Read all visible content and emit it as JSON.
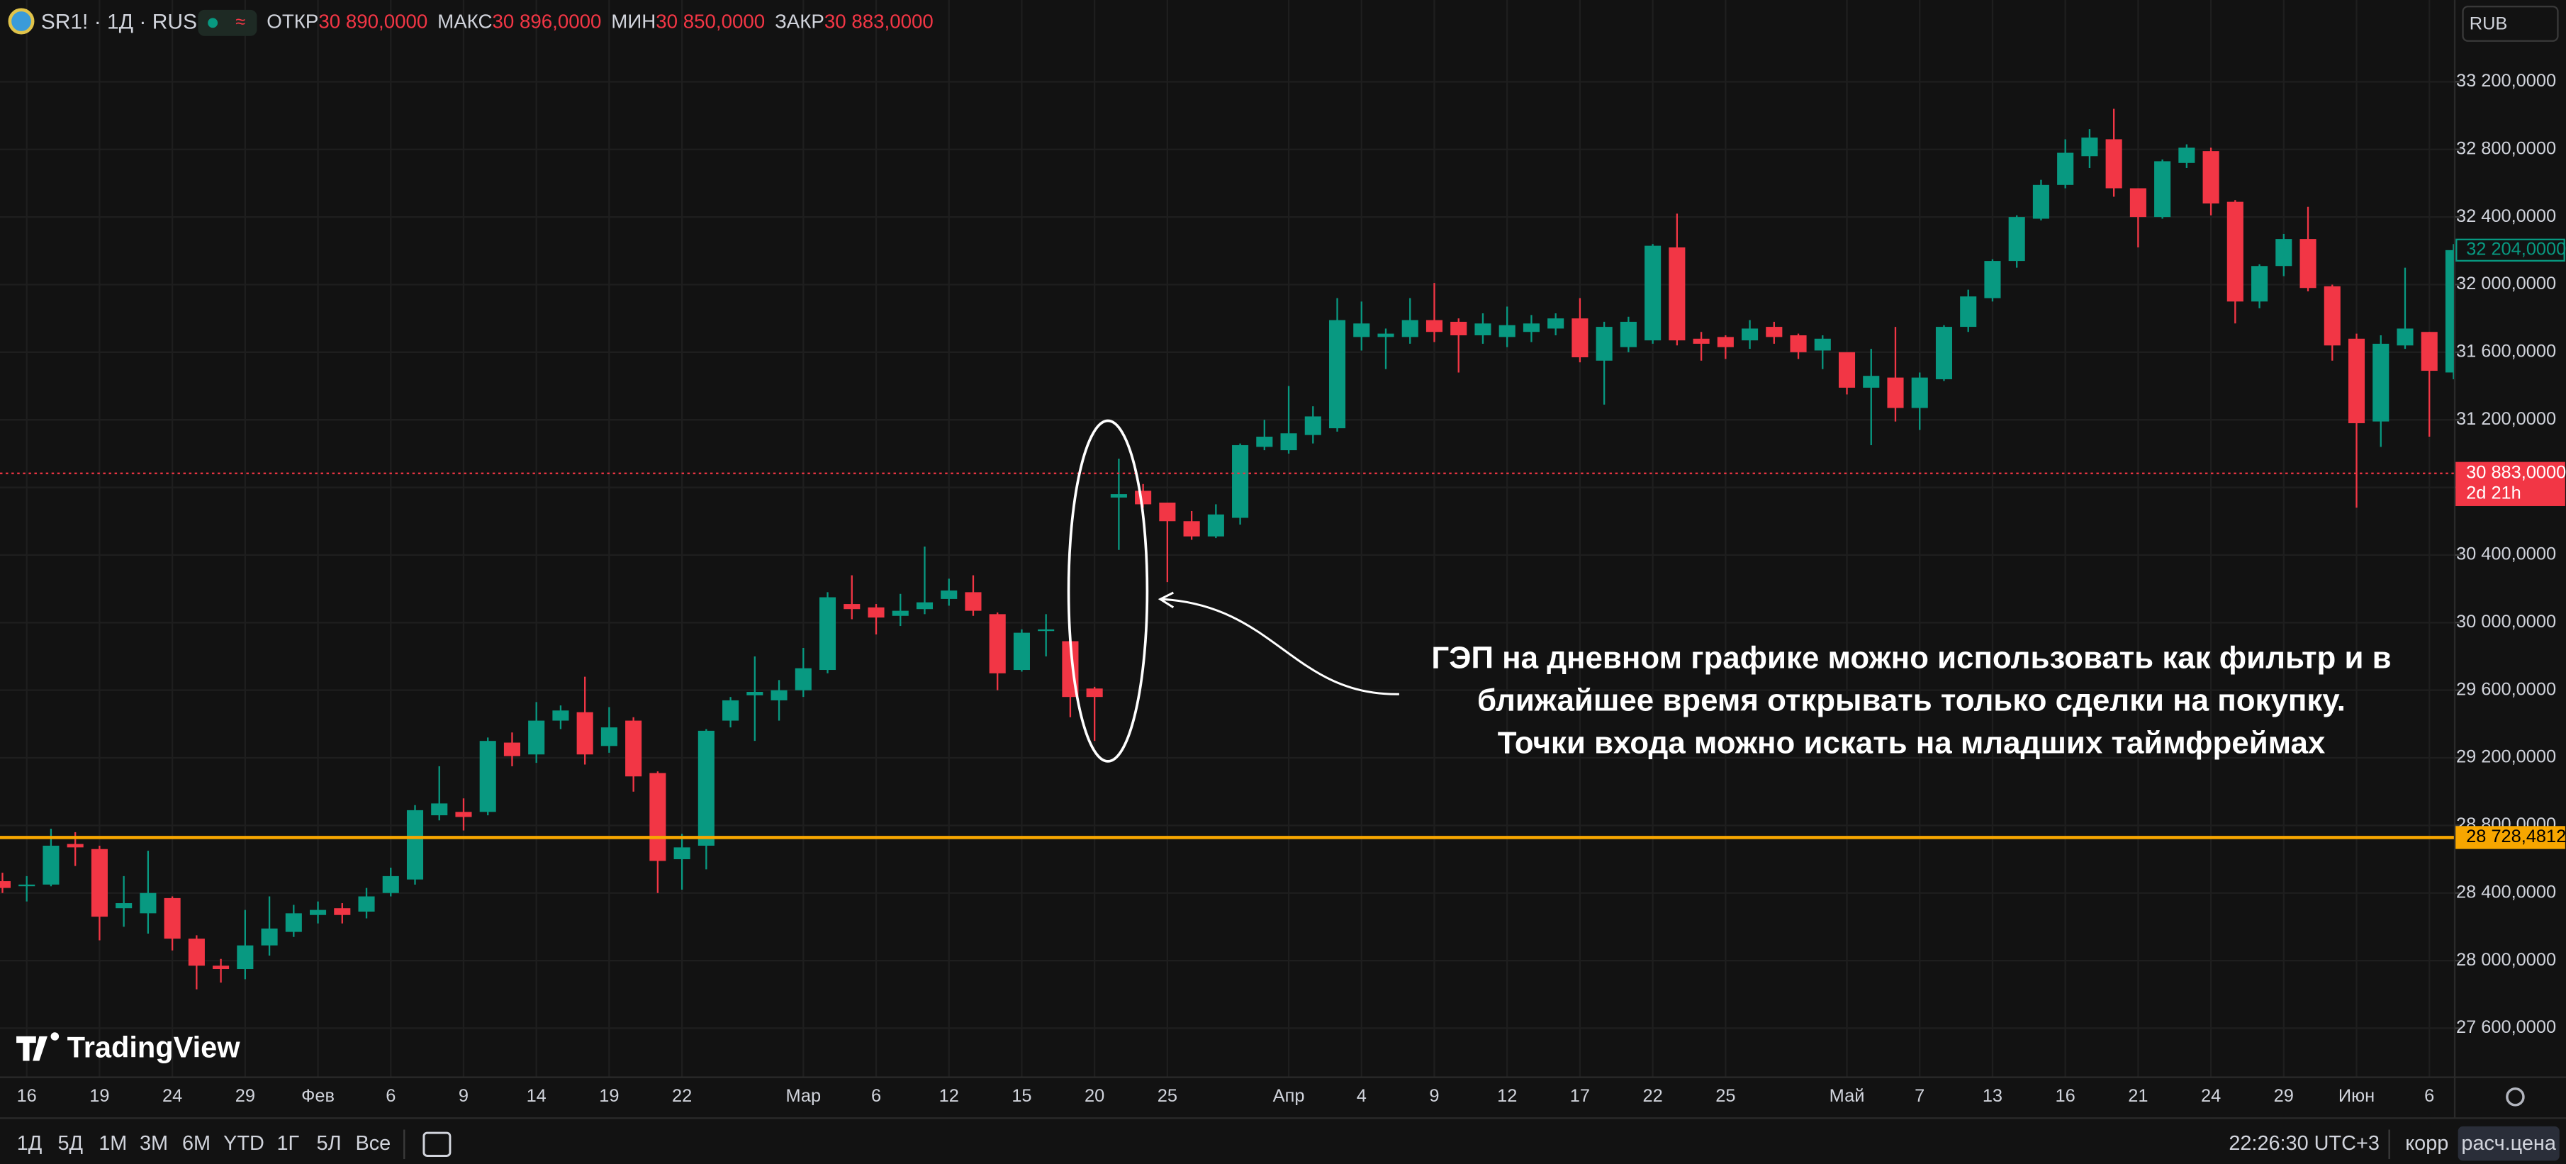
{
  "header": {
    "symbol": "SR1! · 1Д · RUS",
    "open_label": "ОТКР",
    "open": "30 890,0000",
    "high_label": "МАКС",
    "high": "30 896,0000",
    "low_label": "МИН",
    "low": "30 850,0000",
    "close_label": "ЗАКР",
    "close": "30 883,0000",
    "currency": "RUB"
  },
  "chart_data": {
    "type": "candlestick",
    "categories": [
      null,
      "16",
      null,
      null,
      "19",
      null,
      null,
      "24",
      null,
      null,
      "29",
      null,
      null,
      "Фев",
      null,
      null,
      "6",
      null,
      null,
      "9",
      null,
      null,
      "14",
      null,
      null,
      "19",
      null,
      null,
      "22",
      null,
      null,
      null,
      null,
      "Мар",
      null,
      null,
      "6",
      null,
      null,
      "12",
      null,
      null,
      "15",
      null,
      null,
      "20",
      null,
      null,
      "25",
      null,
      null,
      null,
      null,
      "Апр",
      null,
      null,
      "4",
      null,
      null,
      "9",
      null,
      null,
      "12",
      null,
      null,
      "17",
      null,
      null,
      "22",
      null,
      null,
      "25",
      null,
      null,
      null,
      null,
      "Май",
      null,
      null,
      "7",
      null,
      null,
      "13",
      null,
      null,
      "16",
      null,
      null,
      "21",
      null,
      null,
      "24",
      null,
      null,
      "29",
      null,
      null,
      "Июн",
      null,
      null,
      "6",
      null
    ],
    "open": [
      28470,
      28440,
      28450,
      28690,
      28660,
      28310,
      28280,
      28370,
      28130,
      27970,
      27950,
      28090,
      28170,
      28270,
      28310,
      28290,
      28400,
      28480,
      28860,
      28880,
      28880,
      29290,
      29220,
      29420,
      29470,
      29270,
      29420,
      29110,
      28600,
      28680,
      29420,
      29570,
      29540,
      29600,
      29720,
      30110,
      30090,
      30040,
      30080,
      30140,
      30180,
      30050,
      29720,
      29950,
      29890,
      29610,
      30740,
      30780,
      30710,
      30600,
      30510,
      30620,
      31040,
      31020,
      31110,
      31150,
      31690,
      31690,
      31690,
      31790,
      31780,
      31700,
      31690,
      31720,
      31740,
      31800,
      31550,
      31630,
      31670,
      32220,
      31680,
      31690,
      31670,
      31750,
      31700,
      31610,
      31600,
      31390,
      31450,
      31270,
      31440,
      31750,
      31920,
      32140,
      32390,
      32590,
      32760,
      32860,
      32570,
      32400,
      32720,
      32790,
      32490,
      31900,
      32110,
      32270,
      31990,
      31680,
      31190,
      31640,
      31720,
      31480
    ],
    "high": [
      28520,
      28500,
      28780,
      28760,
      28680,
      28500,
      28650,
      28380,
      28150,
      28010,
      28300,
      28380,
      28330,
      28350,
      28340,
      28430,
      28550,
      28920,
      29150,
      28960,
      29320,
      29350,
      29530,
      29510,
      29680,
      29500,
      29440,
      29120,
      28750,
      29370,
      29560,
      29800,
      29660,
      29850,
      30180,
      30280,
      30110,
      30170,
      30450,
      30260,
      30280,
      30060,
      29960,
      30050,
      29890,
      29620,
      30970,
      30820,
      30710,
      30660,
      30700,
      31060,
      31200,
      31400,
      31280,
      31920,
      31900,
      31740,
      31920,
      32010,
      31800,
      31830,
      31870,
      31820,
      31830,
      31920,
      31780,
      31810,
      32240,
      32420,
      31720,
      31700,
      31790,
      31780,
      31710,
      31700,
      31600,
      31620,
      31750,
      31480,
      31760,
      31970,
      32150,
      32410,
      32620,
      32860,
      32920,
      33040,
      32570,
      32740,
      32830,
      32810,
      32500,
      32120,
      32300,
      32460,
      32000,
      31710,
      31700,
      32100,
      31720,
      32240
    ],
    "low": [
      28400,
      28350,
      28440,
      28560,
      28120,
      28200,
      28160,
      28060,
      27830,
      27870,
      27890,
      28030,
      28140,
      28220,
      28220,
      28250,
      28380,
      28450,
      28830,
      28770,
      28860,
      29150,
      29170,
      29370,
      29160,
      29230,
      29000,
      28400,
      28420,
      28540,
      29380,
      29300,
      29420,
      29560,
      29700,
      30020,
      29930,
      29980,
      30050,
      30100,
      30040,
      29600,
      29710,
      29800,
      29440,
      29300,
      30430,
      30680,
      30240,
      30490,
      30500,
      30580,
      31020,
      31000,
      31060,
      31130,
      31610,
      31500,
      31650,
      31660,
      31480,
      31650,
      31630,
      31660,
      31700,
      31540,
      31290,
      31600,
      31650,
      31640,
      31550,
      31560,
      31620,
      31650,
      31560,
      31500,
      31350,
      31050,
      31190,
      31140,
      31430,
      31720,
      31900,
      32100,
      32380,
      32570,
      32690,
      32520,
      32220,
      32390,
      32690,
      32410,
      31770,
      31860,
      32050,
      31960,
      31550,
      30680,
      31040,
      31620,
      31100,
      31440
    ],
    "close": [
      28430,
      28450,
      28680,
      28670,
      28260,
      28340,
      28400,
      28130,
      27970,
      27950,
      28090,
      28190,
      28280,
      28300,
      28270,
      28380,
      28500,
      28890,
      28930,
      28850,
      29300,
      29210,
      29420,
      29480,
      29220,
      29380,
      29090,
      28590,
      28670,
      29360,
      29540,
      29590,
      29600,
      29730,
      30150,
      30080,
      30030,
      30070,
      30120,
      30190,
      30070,
      29700,
      29940,
      29960,
      29560,
      29560,
      30760,
      30700,
      30600,
      30510,
      30640,
      31050,
      31100,
      31120,
      31220,
      31790,
      31770,
      31710,
      31790,
      31720,
      31700,
      31770,
      31760,
      31770,
      31800,
      31570,
      31750,
      31780,
      32230,
      31670,
      31650,
      31630,
      31740,
      31690,
      31600,
      31680,
      31390,
      31460,
      31270,
      31450,
      31750,
      31930,
      32140,
      32400,
      32590,
      32780,
      32870,
      32570,
      32400,
      32730,
      32810,
      32480,
      31900,
      32110,
      32270,
      31980,
      31640,
      31180,
      31650,
      31740,
      31490,
      32204
    ],
    "up_color": "#089981",
    "down_color": "#f23645",
    "ylim": [
      27310,
      33684
    ],
    "yticks": [
      {
        "value": 27600,
        "label": "27 600,0000"
      },
      {
        "value": 28000,
        "label": "28 000,0000"
      },
      {
        "value": 28400,
        "label": "28 400,0000"
      },
      {
        "value": 28800,
        "label": "28 800,0000"
      },
      {
        "value": 29200,
        "label": "29 200,0000"
      },
      {
        "value": 29600,
        "label": "29 600,0000"
      },
      {
        "value": 30000,
        "label": "30 000,0000"
      },
      {
        "value": 30400,
        "label": "30 400,0000"
      },
      {
        "value": 30800,
        "label": "30 800,0000"
      },
      {
        "value": 31200,
        "label": "31 200,0000"
      },
      {
        "value": 31600,
        "label": "31 600,0000"
      },
      {
        "value": 32000,
        "label": "32 000,0000"
      },
      {
        "value": 32400,
        "label": "32 400,0000"
      },
      {
        "value": 32800,
        "label": "32 800,0000"
      },
      {
        "value": 33200,
        "label": "33 200,0000"
      }
    ],
    "grid": true,
    "price_markers": [
      {
        "value": 32204,
        "label": "32 204,0000",
        "color": "#089981",
        "line": "none",
        "filled": false
      },
      {
        "value": 30883,
        "label": "30 883,0000",
        "sublabel": "2d 21h",
        "color": "#f23645",
        "line": "dotted",
        "filled": true
      },
      {
        "value": 28728.4812,
        "label": "28 728,4812",
        "color": "#f7a600",
        "line": "solid",
        "filled": true
      }
    ],
    "annotation": [
      "ГЭП на дневном графике можно использовать как фильтр и в",
      "ближайшее время открывать только сделки на покупку.",
      "Точки входа можно искать на младших таймфреймах"
    ]
  },
  "watermark": "TradingView",
  "toolbar": {
    "ranges": [
      "1Д",
      "5Д",
      "1М",
      "3М",
      "6М",
      "YTD",
      "1Г",
      "5Л",
      "Все"
    ],
    "time": "22:26:30 UTC+3",
    "adjust": "корр",
    "settlement": "расч.цена"
  }
}
